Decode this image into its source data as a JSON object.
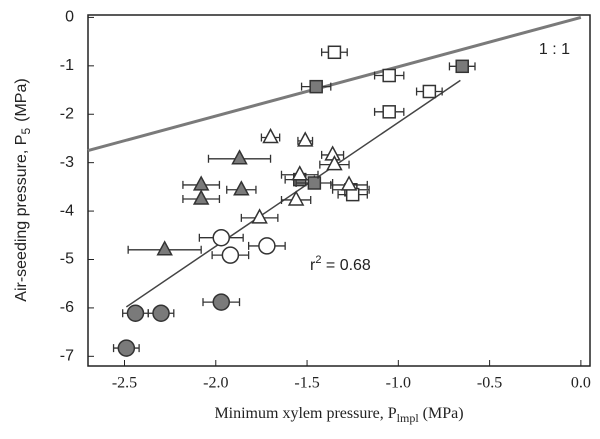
{
  "chart_data": {
    "type": "scatter",
    "ylabel": {
      "text": "Air-seeding pressure, P",
      "sub": "5",
      "unit": "(MPa)"
    },
    "xlabel": {
      "text": "Minimum xylem pressure, P",
      "sub": "lmpl",
      "unit": "(MPa)"
    },
    "xlim": [
      -2.7,
      0.05
    ],
    "ylim": [
      -7.2,
      0.05
    ],
    "xticks": [
      -2.5,
      {
        "value": -2.0,
        "label": "-2.0"
      },
      -1.5,
      {
        "value": -1.0,
        "label": "-1.0"
      },
      -0.5,
      {
        "value": 0.0,
        "label": "0.0"
      }
    ],
    "yticks": [
      0,
      -1,
      -2,
      -3,
      -4,
      -5,
      -6,
      -7
    ],
    "lines": [
      {
        "name": "1 : 1",
        "color": "#7a7a7a",
        "x": [
          -2.7,
          0.0
        ],
        "y": [
          -2.75,
          0.0
        ]
      },
      {
        "color": "#444444",
        "x": [
          -2.49,
          -0.66
        ],
        "y": [
          -5.98,
          -1.3
        ]
      }
    ],
    "annotation": {
      "text": "r",
      "sup": "2",
      "rest": " = 0.68"
    },
    "series": [
      {
        "marker": "square",
        "color": "#ffffff",
        "x": [
          -1.35,
          -1.05,
          -0.83,
          -1.05,
          -1.26,
          -1.25
        ],
        "y": [
          -0.72,
          -1.2,
          -1.53,
          -1.95,
          -3.56,
          -3.66
        ],
        "xerr": [
          0.07,
          0.08,
          0.07,
          0.08,
          0.1,
          0.08
        ]
      },
      {
        "marker": "square",
        "color": "#7a7a7a",
        "x": [
          -1.45,
          -0.65,
          -1.54,
          -1.46
        ],
        "y": [
          -1.43,
          -1.01,
          -3.35,
          -3.42
        ],
        "xerr": [
          0.08,
          0.07,
          0.08,
          0.1
        ]
      },
      {
        "marker": "triangle",
        "color": "#ffffff",
        "x": [
          -1.7,
          -1.51,
          -1.36,
          -1.35,
          -1.54,
          -1.27,
          -1.56,
          -1.76
        ],
        "y": [
          -2.48,
          -2.55,
          -2.84,
          -3.04,
          -3.25,
          -3.46,
          -3.77,
          -4.14
        ],
        "xerr": [
          0.05,
          0.04,
          0.06,
          0.08,
          0.1,
          0.1,
          0.08,
          0.1
        ]
      },
      {
        "marker": "triangle",
        "color": "#7a7a7a",
        "x": [
          -1.87,
          -2.08,
          -1.86,
          -2.08,
          -2.28
        ],
        "y": [
          -2.92,
          -3.46,
          -3.56,
          -3.75,
          -4.8
        ],
        "xerr": [
          0.17,
          0.1,
          0.08,
          0.1,
          0.2
        ]
      },
      {
        "marker": "circle",
        "color": "#ffffff",
        "x": [
          -1.97,
          -1.92,
          -1.72
        ],
        "y": [
          -4.55,
          -4.91,
          -4.72
        ],
        "xerr": [
          0.12,
          0.1,
          0.1
        ]
      },
      {
        "marker": "circle",
        "color": "#7a7a7a",
        "x": [
          -1.97,
          -2.3,
          -2.44,
          -2.49
        ],
        "y": [
          -5.88,
          -6.11,
          -6.11,
          -6.83
        ],
        "xerr": [
          0.1,
          0.07,
          0.07,
          0.07
        ]
      }
    ]
  }
}
